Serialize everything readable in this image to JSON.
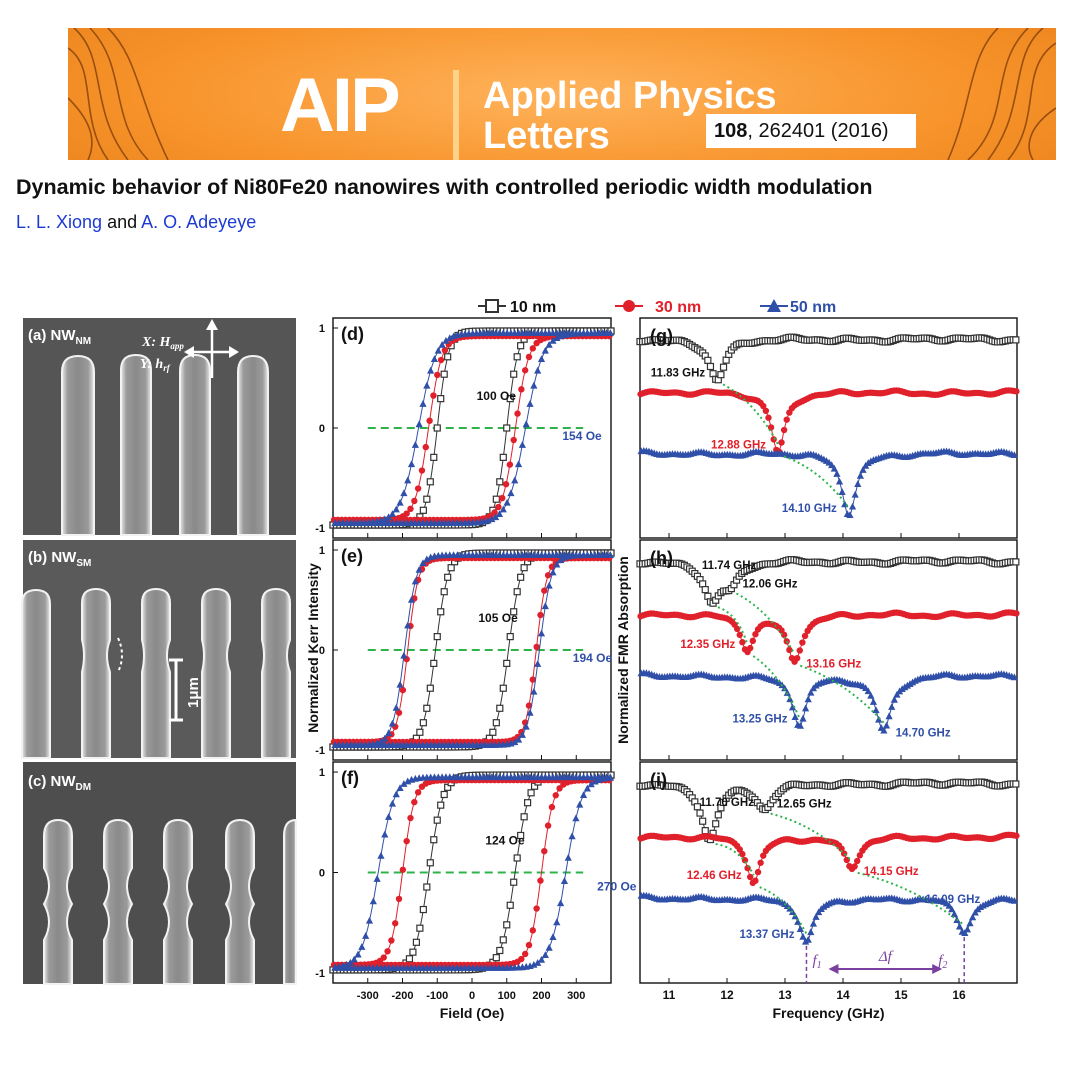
{
  "header": {
    "logo": "AIP",
    "journal_line1": "Applied Physics",
    "journal_line2": "Letters",
    "citation_volume": "108",
    "citation_rest": ", 262401 (2016)"
  },
  "paper": {
    "title": "Dynamic behavior of Ni80Fe20 nanowires with controlled periodic width modulation",
    "author1": "L. L. Xiong",
    "author_sep": "and",
    "author2": "A. O. Adeyeye"
  },
  "colors": {
    "banner": "#f7932a",
    "red": "#e0202a",
    "blue": "#2f4fa8",
    "green": "#2db34a",
    "purple": "#7b3fa0"
  },
  "legend": [
    {
      "label": "10 nm",
      "color": "#333333",
      "marker": "square"
    },
    {
      "label": "30 nm",
      "color": "#e0202a",
      "marker": "circle"
    },
    {
      "label": "50 nm",
      "color": "#2f4fa8",
      "marker": "triangle"
    }
  ],
  "sem": {
    "a": {
      "panel": "(a) NW",
      "sub": "NM"
    },
    "b": {
      "panel": "(b) NW",
      "sub": "SM"
    },
    "c": {
      "panel": "(c) NW",
      "sub": "DM"
    },
    "axis_x": "X: H",
    "axis_x_sub": "app",
    "axis_y": "Y: h",
    "axis_y_sub": "rf",
    "scale_bar": "1μm"
  },
  "chart_data": [
    {
      "type": "line",
      "subtype": "hysteresis",
      "xlabel": "Field (Oe)",
      "ylabel": "Normalized Kerr Intensity",
      "xlim": [
        -400,
        400
      ],
      "xticks": [
        "-300",
        "-200",
        "-100",
        "0",
        "100",
        "200",
        "300"
      ],
      "ylim": [
        -1.1,
        1.1
      ],
      "yticks": [
        "-1",
        "0",
        "1"
      ],
      "panels": [
        {
          "label": "(d)",
          "series": [
            {
              "name": "10 nm",
              "coercive_oe": 100,
              "width_oe": 32
            },
            {
              "name": "30 nm",
              "coercive_oe": 125,
              "width_oe": 38
            },
            {
              "name": "50 nm",
              "coercive_oe": 154,
              "width_oe": 50
            }
          ],
          "annotations": [
            "100 Oe",
            "154 Oe"
          ]
        },
        {
          "label": "(e)",
          "series": [
            {
              "name": "10 nm",
              "coercive_oe": 105,
              "width_oe": 36
            },
            {
              "name": "30 nm",
              "coercive_oe": 185,
              "width_oe": 30
            },
            {
              "name": "50 nm",
              "coercive_oe": 194,
              "width_oe": 34
            }
          ],
          "annotations": [
            "105 Oe",
            "194 Oe"
          ]
        },
        {
          "label": "(f)",
          "series": [
            {
              "name": "10 nm",
              "coercive_oe": 124,
              "width_oe": 40
            },
            {
              "name": "30 nm",
              "coercive_oe": 200,
              "width_oe": 34
            },
            {
              "name": "50 nm",
              "coercive_oe": 270,
              "width_oe": 45
            }
          ],
          "annotations": [
            "124 Oe",
            "270 Oe"
          ]
        }
      ]
    },
    {
      "type": "line",
      "subtype": "fmr-spectra",
      "xlabel": "Frequency (GHz)",
      "ylabel": "Normalized FMR Absorption",
      "xlim": [
        10.5,
        17
      ],
      "xticks": [
        "11",
        "12",
        "13",
        "14",
        "15",
        "16"
      ],
      "panels": [
        {
          "label": "(g)",
          "series": [
            {
              "name": "10 nm",
              "dips_ghz": [
                11.83
              ],
              "depths": [
                1.0
              ]
            },
            {
              "name": "30 nm",
              "dips_ghz": [
                12.88
              ],
              "depths": [
                1.0
              ]
            },
            {
              "name": "50 nm",
              "dips_ghz": [
                14.1
              ],
              "depths": [
                1.0
              ]
            }
          ],
          "annotations": [
            "11.83 GHz",
            "12.88 GHz",
            "14.10 GHz"
          ]
        },
        {
          "label": "(h)",
          "series": [
            {
              "name": "10 nm",
              "dips_ghz": [
                11.74,
                12.06
              ],
              "depths": [
                0.9,
                0.55
              ]
            },
            {
              "name": "30 nm",
              "dips_ghz": [
                12.35,
                13.16
              ],
              "depths": [
                0.75,
                1.0
              ]
            },
            {
              "name": "50 nm",
              "dips_ghz": [
                13.25,
                14.7
              ],
              "depths": [
                0.9,
                1.0
              ]
            }
          ],
          "annotations": [
            "11.74 GHz",
            "12.06 GHz",
            "12.35 GHz",
            "13.16 GHz",
            "13.25 GHz",
            "14.70 GHz"
          ]
        },
        {
          "label": "(i)",
          "series": [
            {
              "name": "10 nm",
              "dips_ghz": [
                11.7,
                12.65
              ],
              "depths": [
                1.0,
                0.45
              ]
            },
            {
              "name": "30 nm",
              "dips_ghz": [
                12.46,
                14.15
              ],
              "depths": [
                1.0,
                0.7
              ]
            },
            {
              "name": "50 nm",
              "dips_ghz": [
                13.37,
                16.09
              ],
              "depths": [
                1.0,
                0.75
              ]
            }
          ],
          "annotations": [
            "11.70 GHz",
            "12.65 GHz",
            "12.46 GHz",
            "14.15 GHz",
            "13.37 GHz",
            "16.09 GHz"
          ],
          "markers": {
            "f1": "f",
            "f1_sub": "1",
            "f2": "f",
            "f2_sub": "2",
            "delta": "Δf"
          }
        }
      ]
    }
  ]
}
